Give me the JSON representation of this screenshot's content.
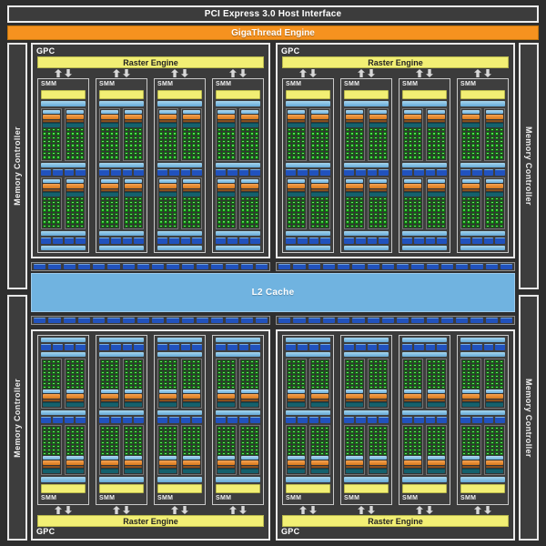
{
  "labels": {
    "pci": "PCI Express 3.0 Host Interface",
    "gigathread": "GigaThread Engine",
    "gpc": "GPC",
    "raster_engine": "Raster Engine",
    "smm": "SMM",
    "l2_cache": "L2 Cache",
    "memory_controller": "Memory Controller"
  },
  "counts": {
    "gpcs": 4,
    "smms_per_gpc": 4,
    "memory_controllers": 4,
    "core_grid": {
      "columns": 4,
      "rows": 8
    },
    "core_block_pairs_per_smm": 2,
    "royal_segments_per_row": 4,
    "xbar_strips": 4,
    "xbar_segments_per_strip": 16,
    "arrow_pairs_per_gpc": 4
  },
  "colors": {
    "background": "#2e2e2e",
    "panel": "#3c3c3c",
    "border_light": "#ededed",
    "orange": "#f6921f",
    "yellow": "#f2ef74",
    "light_blue": "#7fc2e6",
    "l2_blue": "#70b3e0",
    "royal_blue": "#2152bd",
    "green": "#2ec82e",
    "teal": "#15616d",
    "dark_orange": "#8a4f1d",
    "warp_orange": "#e8872a"
  }
}
